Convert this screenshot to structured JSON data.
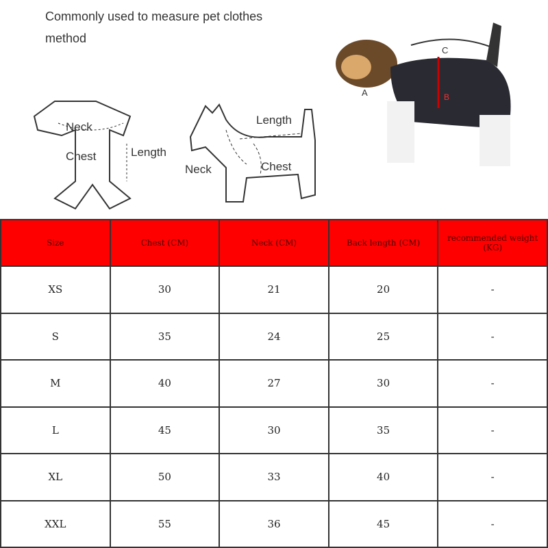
{
  "title": "Commonly used to measure pet clothes method",
  "clothes_diagram": {
    "neck": "Neck",
    "chest": "Chest",
    "length": "Length"
  },
  "dog_diagram": {
    "length": "Length",
    "neck": "Neck",
    "chest": "Chest"
  },
  "photo_labels": {
    "a": "A",
    "b": "B",
    "c": "C"
  },
  "colors": {
    "header_bg": "#ff0000",
    "border": "#333333"
  },
  "table": {
    "headers": [
      "Size",
      "Chest (CM)",
      "Neck (CM)",
      "Back length (CM)",
      "recommended weight (KG)"
    ],
    "rows": [
      [
        "XS",
        "30",
        "21",
        "20",
        "-"
      ],
      [
        "S",
        "35",
        "24",
        "25",
        "-"
      ],
      [
        "M",
        "40",
        "27",
        "30",
        "-"
      ],
      [
        "L",
        "45",
        "30",
        "35",
        "-"
      ],
      [
        "XL",
        "50",
        "33",
        "40",
        "-"
      ],
      [
        "XXL",
        "55",
        "36",
        "45",
        "-"
      ]
    ]
  }
}
